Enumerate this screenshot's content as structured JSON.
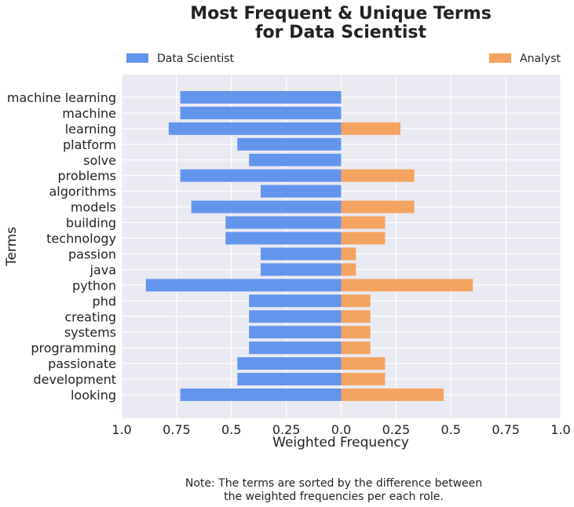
{
  "chart_data": {
    "type": "bar",
    "orientation": "horizontal-diverging",
    "title": [
      "Most Frequent & Unique Terms",
      "for Data Scientist"
    ],
    "xlabel": "Weighted Frequency",
    "ylabel": "Terms",
    "xlim": [
      -1.0,
      1.0
    ],
    "xticks": [
      -1.0,
      -0.75,
      -0.5,
      -0.25,
      0.0,
      0.25,
      0.5,
      0.75,
      1.0
    ],
    "xtick_labels": [
      "1.0",
      "0.75",
      "0.5",
      "0.25",
      "0.0",
      "0.25",
      "0.5",
      "0.75",
      "1.0"
    ],
    "grid": true,
    "legend_placement": "top, split left/right",
    "categories": [
      "machine learning",
      "machine",
      "learning",
      "platform",
      "solve",
      "problems",
      "algorithms",
      "models",
      "building",
      "technology",
      "passion",
      "java",
      "python",
      "phd",
      "creating",
      "systems",
      "programming",
      "passionate",
      "development",
      "looking"
    ],
    "series": [
      {
        "name": "Data Scientist",
        "color": "#6495ED",
        "direction": "left",
        "values": [
          0.733,
          0.733,
          0.786,
          0.473,
          0.42,
          0.733,
          0.367,
          0.683,
          0.527,
          0.527,
          0.367,
          0.367,
          0.89,
          0.42,
          0.42,
          0.42,
          0.42,
          0.473,
          0.473,
          0.733
        ]
      },
      {
        "name": "Analyst",
        "color": "#F4A460",
        "direction": "right",
        "values": [
          0.0,
          0.0,
          0.27,
          0.0,
          0.0,
          0.333,
          0.0,
          0.333,
          0.2,
          0.2,
          0.067,
          0.067,
          0.6,
          0.133,
          0.133,
          0.133,
          0.133,
          0.2,
          0.2,
          0.467
        ]
      }
    ],
    "note": [
      "Note: The terms are sorted by the difference between",
      "the weighted frequencies per each role."
    ]
  }
}
